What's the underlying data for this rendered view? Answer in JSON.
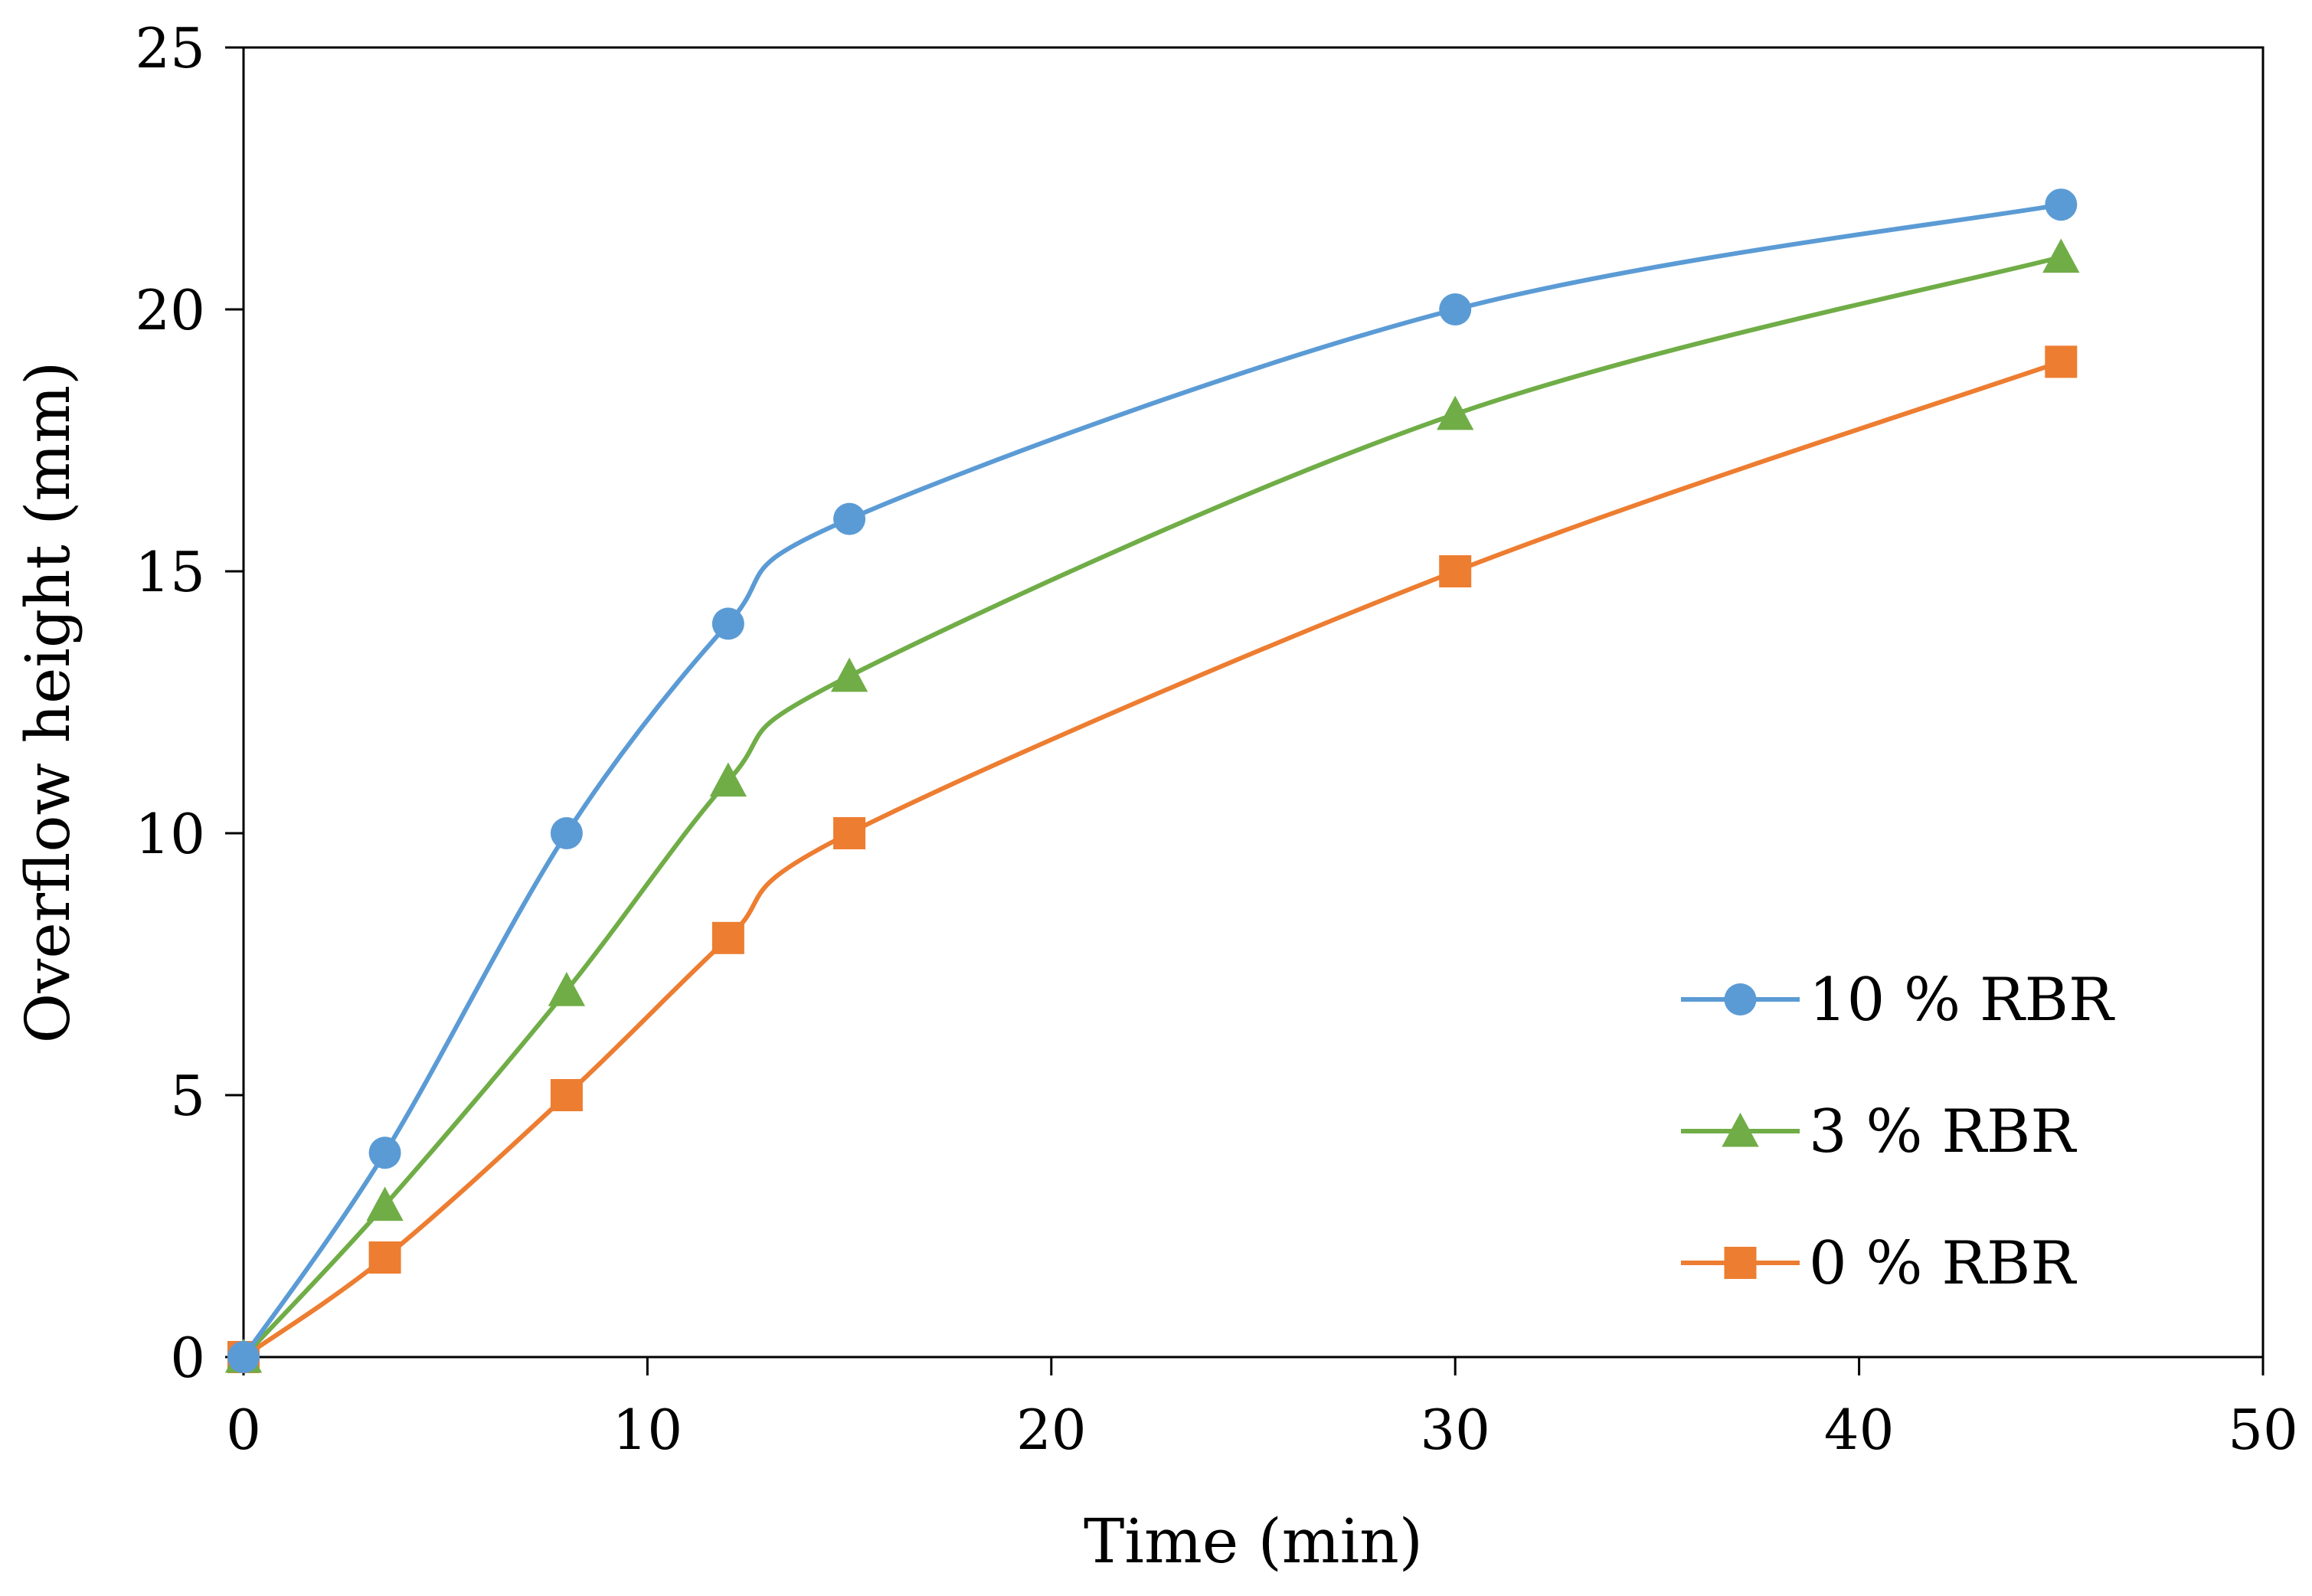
{
  "chart_data": {
    "type": "line",
    "title": "",
    "xlabel": "Time (min)",
    "ylabel": "Overflow height (mm)",
    "xlim": [
      0,
      50
    ],
    "ylim": [
      0,
      25
    ],
    "x_ticks": [
      0,
      10,
      20,
      30,
      40,
      50
    ],
    "y_ticks": [
      0,
      5,
      10,
      15,
      20,
      25
    ],
    "grid": false,
    "smooth": true,
    "legend_position": "bottom-right",
    "series": [
      {
        "name": "10 % RBR",
        "marker": "circle",
        "color": "#5B9BD5",
        "x": [
          0,
          3.5,
          8,
          12,
          15,
          30,
          45
        ],
        "y": [
          0,
          3.9,
          10,
          14,
          16,
          20,
          22
        ]
      },
      {
        "name": "3 % RBR",
        "marker": "triangle",
        "color": "#70AD47",
        "x": [
          0,
          3.5,
          8,
          12,
          15,
          30,
          45
        ],
        "y": [
          0,
          2.9,
          7,
          11,
          13,
          18,
          21
        ]
      },
      {
        "name": "0 % RBR",
        "marker": "square",
        "color": "#ED7D31",
        "x": [
          0,
          3.5,
          8,
          12,
          15,
          30,
          45
        ],
        "y": [
          0,
          1.9,
          5,
          8,
          10,
          15,
          19
        ]
      }
    ]
  }
}
